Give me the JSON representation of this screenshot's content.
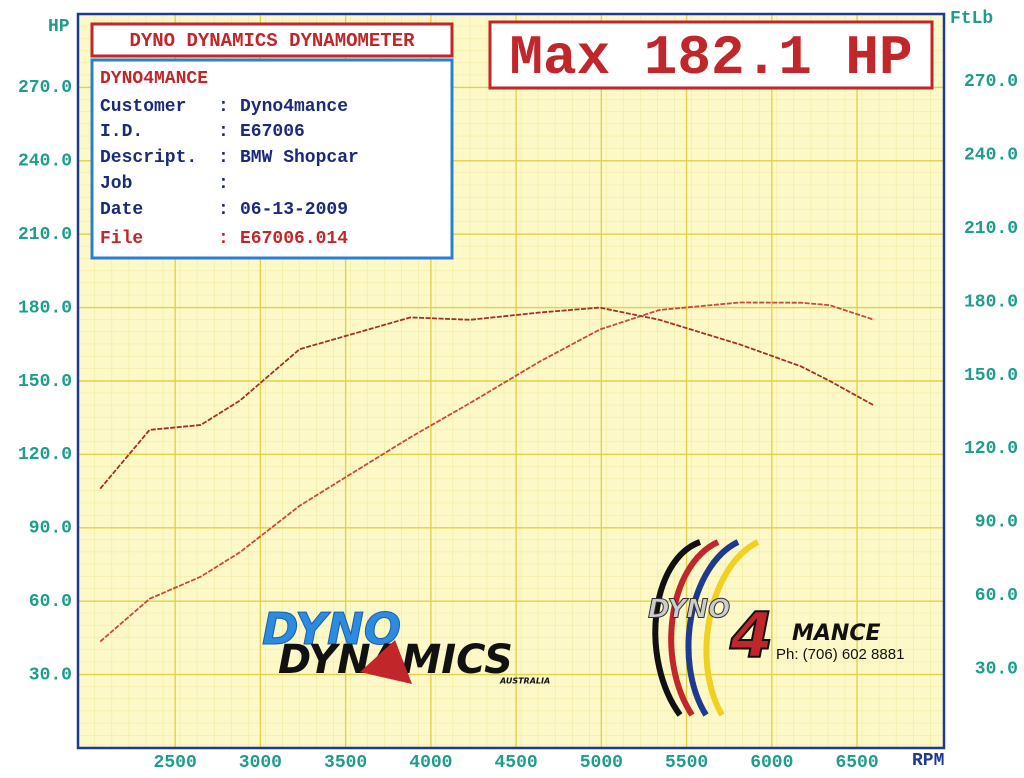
{
  "chart_data": {
    "type": "line",
    "title": "Max 182.1 HP",
    "subtitle": "DYNO DYNAMICS DYNAMOMETER",
    "y_label": "HP",
    "y2_label": "FtLb",
    "x_label": "RPM",
    "x": [
      2060,
      2350,
      2650,
      2880,
      3230,
      3530,
      3880,
      4230,
      4640,
      4990,
      5340,
      5810,
      6170,
      6340,
      6600
    ],
    "series": [
      {
        "color": "#c94a3c",
        "values": [
          43.5,
          61,
          70,
          80,
          99,
          112,
          127,
          141,
          158,
          171,
          179,
          182.1,
          182,
          181,
          175
        ]
      },
      {
        "color": "#a3302c",
        "axis": "y2",
        "values": [
          106,
          130,
          132,
          142,
          163,
          169,
          176,
          175,
          178,
          180,
          175,
          165,
          156,
          150,
          140
        ]
      }
    ],
    "xlim": [
      1930,
      7010
    ],
    "xticks": [
      2500,
      3000,
      3500,
      4000,
      4500,
      5000,
      5500,
      6000,
      6500
    ],
    "ylim": [
      0,
      300
    ],
    "yticks": [
      {
        "value": 30,
        "label": "30.0"
      },
      {
        "value": 60,
        "label": "60.0"
      },
      {
        "value": 90,
        "label": "90.0"
      },
      {
        "value": 120,
        "label": "120.0"
      },
      {
        "value": 150,
        "label": "150.0"
      },
      {
        "value": 180,
        "label": "180.0"
      },
      {
        "value": 210,
        "label": "210.0"
      },
      {
        "value": 240,
        "label": "240.0"
      },
      {
        "value": 270,
        "label": "270.0"
      }
    ],
    "y2lim": [
      0,
      300
    ],
    "y2ticks": [
      {
        "value": 30,
        "label": "30.0"
      },
      {
        "value": 60,
        "label": "60.0"
      },
      {
        "value": 90,
        "label": "90.0"
      },
      {
        "value": 120,
        "label": "120.0"
      },
      {
        "value": 150,
        "label": "150.0"
      },
      {
        "value": 180,
        "label": "180.0"
      },
      {
        "value": 210,
        "label": "210.0"
      },
      {
        "value": 240,
        "label": "240.0"
      },
      {
        "value": 270,
        "label": "270.0"
      }
    ],
    "grid": true,
    "info_box": {
      "title": "DYNO4MANCE",
      "rows": [
        [
          "Customer",
          ":",
          "Dyno4mance"
        ],
        [
          "I.D.",
          ":",
          "E67006"
        ],
        [
          "Descript.",
          ":",
          "BMW Shopcar"
        ],
        [
          "Job",
          ":"
        ],
        [
          "Date",
          ":",
          "06-13-2009"
        ],
        [
          "File",
          ":",
          "E67006.014"
        ]
      ]
    },
    "logos": {
      "dyno_dynamics": [
        "DYNO",
        "DYNAMICS",
        "AUSTRALIA"
      ],
      "dyno4mance": [
        "DYNO",
        "4",
        "MANCE",
        "Ph: (706) 602 8881"
      ]
    }
  }
}
